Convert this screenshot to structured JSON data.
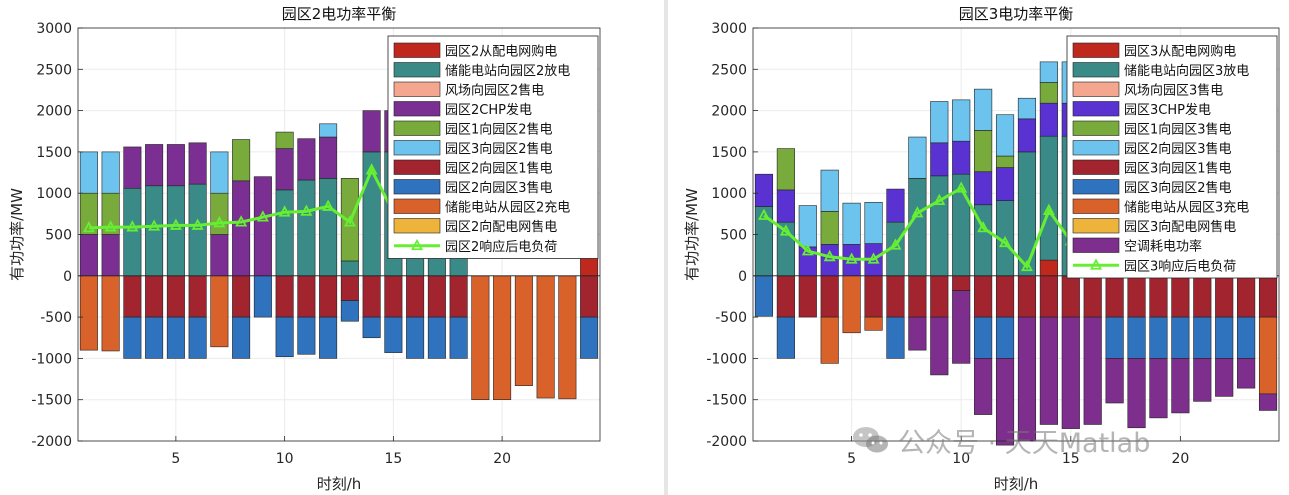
{
  "watermark": {
    "text": "公众号 · 天天Matlab",
    "icon": "wechat-icon"
  },
  "chart_data": [
    {
      "type": "bar",
      "stacked": true,
      "title": "园区2电功率平衡",
      "xlabel": "时刻/h",
      "ylabel": "有功功率/MW",
      "ylim": [
        -2000,
        3000
      ],
      "yticks": [
        -2000,
        -1500,
        -1000,
        -500,
        0,
        500,
        1000,
        1500,
        2000,
        2500,
        3000
      ],
      "xticks": [
        5,
        10,
        15,
        20
      ],
      "xlim": [
        0.5,
        24.5
      ],
      "grid": true,
      "legend_position": "top-right",
      "categories": [
        1,
        2,
        3,
        4,
        5,
        6,
        7,
        8,
        9,
        10,
        11,
        12,
        13,
        14,
        15,
        16,
        17,
        18,
        19,
        20,
        21,
        22,
        23,
        24
      ],
      "series": [
        {
          "name": "园区2从配电网购电",
          "color": "#c0281e",
          "values": [
            0,
            0,
            0,
            0,
            0,
            0,
            0,
            0,
            0,
            0,
            0,
            0,
            0,
            0,
            0,
            0,
            0,
            0,
            0,
            0,
            0,
            0,
            0,
            800
          ]
        },
        {
          "name": "储能电站向园区2放电",
          "color": "#3a8a87",
          "values": [
            0,
            0,
            1060,
            1090,
            1090,
            1110,
            0,
            0,
            0,
            1040,
            1160,
            1180,
            180,
            1500,
            1500,
            1500,
            1500,
            1500,
            0,
            0,
            0,
            0,
            0,
            0
          ]
        },
        {
          "name": "风场向园区2售电",
          "color": "#f4a78e",
          "values": [
            0,
            0,
            0,
            0,
            0,
            0,
            0,
            0,
            0,
            0,
            0,
            0,
            0,
            0,
            0,
            0,
            0,
            0,
            0,
            0,
            0,
            0,
            0,
            0
          ]
        },
        {
          "name": "园区2CHP发电",
          "color": "#7b2f93",
          "values": [
            500,
            500,
            500,
            500,
            500,
            500,
            500,
            1150,
            1200,
            500,
            500,
            500,
            0,
            500,
            500,
            500,
            500,
            500,
            0,
            0,
            0,
            0,
            0,
            500
          ]
        },
        {
          "name": "园区1向园区2售电",
          "color": "#78ab3c",
          "values": [
            500,
            500,
            0,
            0,
            0,
            0,
            500,
            500,
            0,
            200,
            0,
            0,
            1000,
            0,
            0,
            0,
            0,
            0,
            0,
            0,
            0,
            0,
            0,
            0
          ]
        },
        {
          "name": "园区3向园区2售电",
          "color": "#6cc4ee",
          "values": [
            500,
            500,
            0,
            0,
            0,
            0,
            500,
            0,
            0,
            0,
            0,
            160,
            0,
            0,
            0,
            0,
            0,
            0,
            0,
            0,
            0,
            0,
            0,
            0
          ]
        },
        {
          "name": "园区2向园区1售电",
          "color": "#a2242e",
          "values": [
            0,
            0,
            -500,
            -500,
            -500,
            -500,
            0,
            -500,
            0,
            -500,
            -500,
            -500,
            -300,
            -500,
            -500,
            -500,
            -500,
            -500,
            0,
            0,
            0,
            0,
            0,
            -500
          ]
        },
        {
          "name": "园区2向园区3售电",
          "color": "#2f72bd",
          "values": [
            0,
            0,
            -500,
            -500,
            -500,
            -500,
            0,
            -500,
            -500,
            -480,
            -450,
            -500,
            -250,
            -250,
            -430,
            -500,
            -500,
            -500,
            0,
            0,
            0,
            0,
            0,
            -500
          ]
        },
        {
          "name": "储能电站从园区2充电",
          "color": "#d9622b",
          "values": [
            -900,
            -910,
            0,
            0,
            0,
            0,
            -860,
            0,
            0,
            0,
            0,
            0,
            0,
            0,
            0,
            0,
            0,
            0,
            -1500,
            -1500,
            -1330,
            -1480,
            -1490,
            0
          ]
        },
        {
          "name": "园区2向配电网售电",
          "color": "#edb33a",
          "values": [
            0,
            0,
            0,
            0,
            0,
            0,
            0,
            0,
            0,
            0,
            0,
            0,
            0,
            0,
            0,
            0,
            0,
            0,
            0,
            0,
            0,
            0,
            0,
            0
          ]
        }
      ],
      "line": {
        "name": "园区2响应后电负荷",
        "color": "#66ee33",
        "values": [
          580,
          590,
          590,
          600,
          610,
          610,
          640,
          650,
          710,
          770,
          780,
          840,
          650,
          1280,
          770,
          730,
          680,
          640,
          560,
          520,
          500,
          450,
          400,
          290
        ]
      }
    },
    {
      "type": "bar",
      "stacked": true,
      "title": "园区3电功率平衡",
      "xlabel": "时刻/h",
      "ylabel": "有功功率/MW",
      "ylim": [
        -2000,
        3000
      ],
      "yticks": [
        -2000,
        -1500,
        -1000,
        -500,
        0,
        500,
        1000,
        1500,
        2000,
        2500,
        3000
      ],
      "xticks": [
        5,
        10,
        15,
        20
      ],
      "xlim": [
        0.5,
        24.5
      ],
      "grid": true,
      "legend_position": "top-right",
      "categories": [
        1,
        2,
        3,
        4,
        5,
        6,
        7,
        8,
        9,
        10,
        11,
        12,
        13,
        14,
        15,
        16,
        17,
        18,
        19,
        20,
        21,
        22,
        23,
        24
      ],
      "series": [
        {
          "name": "园区3从配电网购电",
          "color": "#c0281e",
          "values": [
            0,
            0,
            0,
            0,
            0,
            0,
            0,
            0,
            0,
            0,
            0,
            0,
            0,
            190,
            0,
            0,
            0,
            0,
            0,
            0,
            0,
            0,
            0,
            800
          ]
        },
        {
          "name": "储能电站向园区3放电",
          "color": "#3a8a87",
          "values": [
            840,
            650,
            0,
            0,
            0,
            0,
            650,
            1180,
            1210,
            1230,
            860,
            910,
            1500,
            1500,
            1690,
            1800,
            1500,
            1500,
            1500,
            1500,
            1500,
            1500,
            1500,
            0
          ]
        },
        {
          "name": "风场向园区3售电",
          "color": "#f4a78e",
          "values": [
            0,
            0,
            0,
            0,
            0,
            0,
            0,
            0,
            0,
            0,
            0,
            0,
            0,
            0,
            0,
            0,
            0,
            0,
            0,
            0,
            0,
            0,
            0,
            350
          ]
        },
        {
          "name": "园区3CHP发电",
          "color": "#5a32d1",
          "values": [
            390,
            390,
            350,
            380,
            380,
            390,
            400,
            0,
            400,
            400,
            400,
            400,
            400,
            400,
            400,
            400,
            400,
            400,
            400,
            400,
            400,
            400,
            400,
            400
          ]
        },
        {
          "name": "园区1向园区3售电",
          "color": "#78ab3c",
          "values": [
            0,
            500,
            0,
            400,
            0,
            0,
            0,
            0,
            0,
            0,
            500,
            140,
            0,
            250,
            0,
            0,
            0,
            0,
            0,
            0,
            0,
            0,
            0,
            0
          ]
        },
        {
          "name": "园区2向园区3售电",
          "color": "#6cc4ee",
          "values": [
            0,
            0,
            500,
            500,
            500,
            500,
            0,
            500,
            500,
            500,
            500,
            500,
            250,
            250,
            500,
            500,
            500,
            500,
            500,
            500,
            500,
            500,
            500,
            500
          ]
        },
        {
          "name": "园区3向园区1售电",
          "color": "#a2242e",
          "values": [
            0,
            -500,
            -500,
            -500,
            0,
            -500,
            -500,
            -500,
            -500,
            -180,
            -500,
            -500,
            -500,
            -500,
            -500,
            -500,
            -500,
            -500,
            -500,
            -500,
            -500,
            -500,
            -500,
            -500
          ]
        },
        {
          "name": "园区3向园区2售电",
          "color": "#2f72bd",
          "values": [
            -490,
            -500,
            0,
            0,
            0,
            0,
            -500,
            0,
            0,
            0,
            -500,
            -500,
            0,
            0,
            0,
            0,
            -500,
            -500,
            -500,
            -500,
            -500,
            -500,
            -500,
            0
          ]
        },
        {
          "name": "储能电站从园区3充电",
          "color": "#d9622b",
          "values": [
            0,
            0,
            0,
            -560,
            -690,
            -160,
            0,
            0,
            0,
            0,
            0,
            0,
            0,
            0,
            0,
            0,
            0,
            0,
            0,
            0,
            0,
            0,
            0,
            -930
          ]
        },
        {
          "name": "园区3向配电网售电",
          "color": "#edb33a",
          "values": [
            0,
            0,
            0,
            0,
            0,
            0,
            0,
            0,
            0,
            0,
            0,
            0,
            0,
            0,
            0,
            0,
            0,
            0,
            0,
            0,
            0,
            0,
            0,
            0
          ]
        },
        {
          "name": "空调耗电功率",
          "color": "#7e2f8e",
          "values": [
            0,
            0,
            0,
            0,
            0,
            0,
            0,
            -400,
            -700,
            -880,
            -680,
            -1050,
            -1500,
            -1300,
            -1350,
            -1300,
            -540,
            -840,
            -720,
            -660,
            -520,
            -460,
            -360,
            -200
          ]
        }
      ],
      "line": {
        "name": "园区3响应后电负荷",
        "color": "#66ee33",
        "values": [
          730,
          540,
          300,
          230,
          200,
          200,
          370,
          760,
          910,
          1060,
          580,
          400,
          110,
          790,
          420,
          400,
          360,
          450,
          490,
          460,
          460,
          490,
          460,
          420
        ]
      }
    }
  ]
}
